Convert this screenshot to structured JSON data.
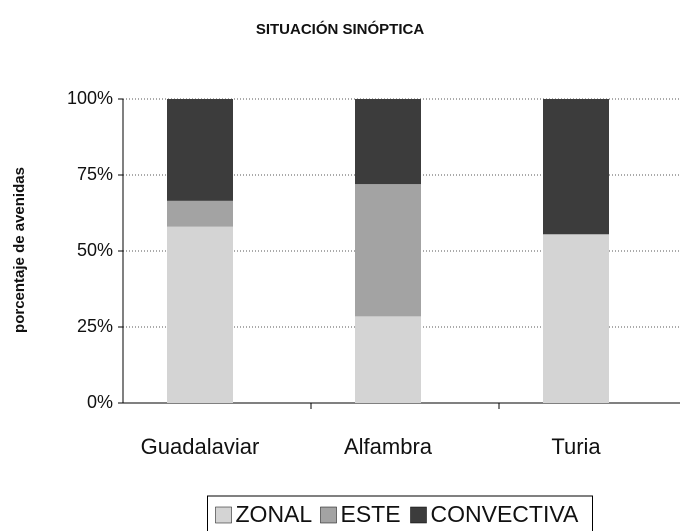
{
  "chart_data": {
    "type": "stacked_bar",
    "title": "SITUACIÓN SINÓPTICA",
    "y_label": "porcentaje de avenidas",
    "categories": [
      "Guadalaviar",
      "Alfambra",
      "Turia"
    ],
    "series": [
      {
        "name": "ZONAL",
        "color": "#d4d4d4",
        "values": [
          58,
          28.5,
          55.5
        ]
      },
      {
        "name": "ESTE",
        "color": "#a3a3a3",
        "values": [
          8.5,
          43.5,
          0
        ]
      },
      {
        "name": "CONVECTIVA",
        "color": "#3c3c3c",
        "values": [
          33.5,
          28,
          44.5
        ]
      }
    ],
    "ylim": [
      0,
      100
    ],
    "yticks": [
      {
        "value": 0,
        "label": "0%"
      },
      {
        "value": 25,
        "label": "25%"
      },
      {
        "value": 50,
        "label": "50%"
      },
      {
        "value": 75,
        "label": "75%"
      },
      {
        "value": 100,
        "label": "100%"
      }
    ],
    "grid": true,
    "legend": "bottom"
  }
}
